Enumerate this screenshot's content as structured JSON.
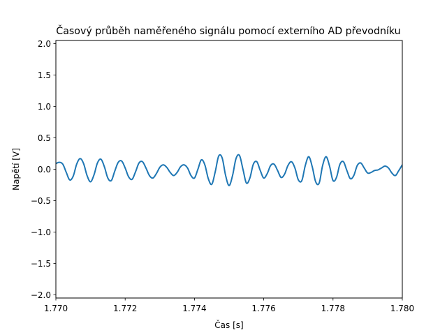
{
  "chart_data": {
    "type": "line",
    "title": "Časový průběh naměřeného signálu pomocí externího AD převodníku",
    "xlabel": "Čas [s]",
    "ylabel": "Napětí [V]",
    "xlim": [
      1.77,
      1.78
    ],
    "ylim": [
      -2.05,
      2.05
    ],
    "xticks": [
      1.77,
      1.772,
      1.774,
      1.776,
      1.778,
      1.78
    ],
    "xtick_labels": [
      "1.770",
      "1.772",
      "1.774",
      "1.776",
      "1.778",
      "1.780"
    ],
    "yticks": [
      -2.0,
      -1.5,
      -1.0,
      -0.5,
      0.0,
      0.5,
      1.0,
      1.5,
      2.0
    ],
    "ytick_labels": [
      "−2.0",
      "−1.5",
      "−1.0",
      "−0.5",
      "0.0",
      "0.5",
      "1.0",
      "1.5",
      "2.0"
    ],
    "grid": false,
    "line_color": "#1f77b4",
    "series": [
      {
        "values": [
          [
            1.77,
            0.09
          ],
          [
            1.7701,
            0.11
          ],
          [
            1.7702,
            0.08
          ],
          [
            1.7703,
            -0.05
          ],
          [
            1.7704,
            -0.17
          ],
          [
            1.7705,
            -0.11
          ],
          [
            1.7706,
            0.08
          ],
          [
            1.7707,
            0.17
          ],
          [
            1.7708,
            0.09
          ],
          [
            1.7709,
            -0.1
          ],
          [
            1.771,
            -0.2
          ],
          [
            1.7711,
            -0.09
          ],
          [
            1.7712,
            0.1
          ],
          [
            1.7713,
            0.16
          ],
          [
            1.7714,
            0.04
          ],
          [
            1.7715,
            -0.14
          ],
          [
            1.7716,
            -0.18
          ],
          [
            1.7717,
            -0.03
          ],
          [
            1.7718,
            0.11
          ],
          [
            1.7719,
            0.13
          ],
          [
            1.772,
            0.02
          ],
          [
            1.7721,
            -0.12
          ],
          [
            1.7722,
            -0.16
          ],
          [
            1.7723,
            -0.04
          ],
          [
            1.7724,
            0.1
          ],
          [
            1.7725,
            0.12
          ],
          [
            1.7726,
            0.02
          ],
          [
            1.7727,
            -0.1
          ],
          [
            1.7728,
            -0.14
          ],
          [
            1.7729,
            -0.07
          ],
          [
            1.773,
            0.03
          ],
          [
            1.7731,
            0.07
          ],
          [
            1.7732,
            0.03
          ],
          [
            1.7733,
            -0.05
          ],
          [
            1.7734,
            -0.1
          ],
          [
            1.7735,
            -0.05
          ],
          [
            1.7736,
            0.04
          ],
          [
            1.7737,
            0.07
          ],
          [
            1.7738,
            0.02
          ],
          [
            1.7739,
            -0.1
          ],
          [
            1.774,
            -0.14
          ],
          [
            1.7741,
            0.0
          ],
          [
            1.7742,
            0.15
          ],
          [
            1.7743,
            0.07
          ],
          [
            1.7744,
            -0.15
          ],
          [
            1.7745,
            -0.24
          ],
          [
            1.7746,
            -0.04
          ],
          [
            1.7747,
            0.21
          ],
          [
            1.7748,
            0.18
          ],
          [
            1.7749,
            -0.1
          ],
          [
            1.775,
            -0.26
          ],
          [
            1.7751,
            -0.1
          ],
          [
            1.7752,
            0.17
          ],
          [
            1.7753,
            0.22
          ],
          [
            1.7754,
            0.0
          ],
          [
            1.7755,
            -0.22
          ],
          [
            1.7756,
            -0.14
          ],
          [
            1.7757,
            0.08
          ],
          [
            1.7758,
            0.12
          ],
          [
            1.7759,
            -0.02
          ],
          [
            1.776,
            -0.14
          ],
          [
            1.7761,
            -0.07
          ],
          [
            1.7762,
            0.06
          ],
          [
            1.7763,
            0.08
          ],
          [
            1.7764,
            -0.02
          ],
          [
            1.7765,
            -0.13
          ],
          [
            1.7766,
            -0.08
          ],
          [
            1.7767,
            0.06
          ],
          [
            1.7768,
            0.12
          ],
          [
            1.7769,
            0.02
          ],
          [
            1.777,
            -0.17
          ],
          [
            1.7771,
            -0.18
          ],
          [
            1.7772,
            0.06
          ],
          [
            1.7773,
            0.2
          ],
          [
            1.7774,
            0.04
          ],
          [
            1.7775,
            -0.2
          ],
          [
            1.7776,
            -0.22
          ],
          [
            1.7777,
            0.06
          ],
          [
            1.7778,
            0.2
          ],
          [
            1.7779,
            0.05
          ],
          [
            1.778,
            -0.18
          ],
          [
            1.7781,
            -0.13
          ],
          [
            1.7782,
            0.08
          ],
          [
            1.7783,
            0.12
          ],
          [
            1.7784,
            -0.02
          ],
          [
            1.7785,
            -0.15
          ],
          [
            1.7786,
            -0.1
          ],
          [
            1.7787,
            0.06
          ],
          [
            1.7788,
            0.1
          ],
          [
            1.7789,
            0.02
          ],
          [
            1.779,
            -0.06
          ],
          [
            1.7791,
            -0.05
          ],
          [
            1.7792,
            -0.02
          ],
          [
            1.7793,
            -0.01
          ],
          [
            1.7794,
            0.02
          ],
          [
            1.7795,
            0.05
          ],
          [
            1.7796,
            0.02
          ],
          [
            1.7797,
            -0.06
          ],
          [
            1.7798,
            -0.1
          ],
          [
            1.7799,
            -0.02
          ],
          [
            1.78,
            0.07
          ]
        ]
      }
    ]
  }
}
